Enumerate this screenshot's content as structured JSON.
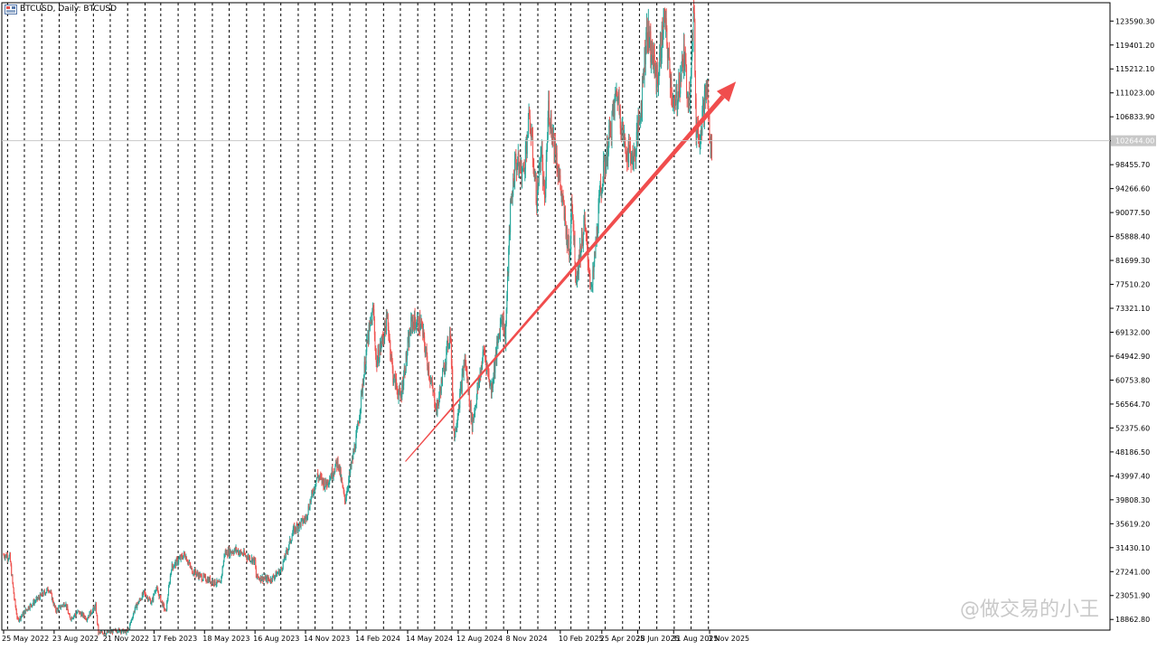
{
  "window": {
    "title": "BTCUSD, Daily: BTCUSD"
  },
  "watermark": "@做交易的小王",
  "chart_data": {
    "type": "candlestick",
    "symbol": "BTCUSD",
    "timeframe": "Daily",
    "title": "BTCUSD, Daily: BTCUSD",
    "current_price": 102644.0,
    "current_price_label": "102644.00",
    "x_start": "2022-05-25",
    "x_end": "2025-11-03",
    "x_ticks": [
      {
        "date": "2022-05-25",
        "label": "25 May 2022"
      },
      {
        "date": "2022-08-23",
        "label": "23 Aug 2022"
      },
      {
        "date": "2022-11-21",
        "label": "21 Nov 2022"
      },
      {
        "date": "2023-02-17",
        "label": "17 Feb 2023"
      },
      {
        "date": "2023-05-18",
        "label": "18 May 2023"
      },
      {
        "date": "2023-08-16",
        "label": "16 Aug 2023"
      },
      {
        "date": "2023-11-14",
        "label": "14 Nov 2023"
      },
      {
        "date": "2024-02-14",
        "label": "14 Feb 2024"
      },
      {
        "date": "2024-05-14",
        "label": "14 May 2024"
      },
      {
        "date": "2024-08-12",
        "label": "12 Aug 2024"
      },
      {
        "date": "2024-11-08",
        "label": "8 Nov 2024"
      },
      {
        "date": "2025-02-10",
        "label": "10 Feb 2025"
      },
      {
        "date": "2025-04-25",
        "label": "25 Apr 2025"
      },
      {
        "date": "2025-06-28",
        "label": "28 Jun 2025"
      },
      {
        "date": "2025-08-31",
        "label": "31 Aug 2025"
      },
      {
        "date": "2025-11-03",
        "label": "3 Nov 2025"
      }
    ],
    "y_ticks": [
      "123590.30",
      "119401.20",
      "115212.10",
      "111023.00",
      "106833.90",
      "102644.00",
      "98455.70",
      "94266.60",
      "90077.50",
      "85888.40",
      "81699.30",
      "77510.20",
      "73321.10",
      "69132.00",
      "64942.90",
      "60753.80",
      "56564.70",
      "52375.60",
      "48186.50",
      "43997.40",
      "39808.30",
      "35619.20",
      "31430.10",
      "27241.00",
      "23051.90",
      "18862.80"
    ],
    "ylim": [
      17000,
      126800
    ],
    "grid": "vertical dashed",
    "price_path": [
      [
        "2022-05-25",
        30200
      ],
      [
        "2022-06-05",
        29800
      ],
      [
        "2022-06-13",
        22500
      ],
      [
        "2022-06-19",
        18700
      ],
      [
        "2022-07-08",
        21000
      ],
      [
        "2022-07-25",
        22500
      ],
      [
        "2022-08-14",
        24300
      ],
      [
        "2022-08-26",
        20400
      ],
      [
        "2022-09-12",
        21800
      ],
      [
        "2022-09-20",
        19000
      ],
      [
        "2022-10-05",
        20200
      ],
      [
        "2022-10-20",
        19100
      ],
      [
        "2022-11-05",
        21200
      ],
      [
        "2022-11-10",
        16500
      ],
      [
        "2022-11-25",
        16500
      ],
      [
        "2022-12-15",
        17000
      ],
      [
        "2023-01-01",
        16600
      ],
      [
        "2023-01-14",
        20800
      ],
      [
        "2023-01-30",
        23500
      ],
      [
        "2023-02-13",
        21800
      ],
      [
        "2023-02-20",
        24500
      ],
      [
        "2023-03-10",
        20100
      ],
      [
        "2023-03-20",
        28000
      ],
      [
        "2023-04-13",
        30300
      ],
      [
        "2023-04-25",
        27500
      ],
      [
        "2023-05-12",
        26300
      ],
      [
        "2023-06-15",
        25000
      ],
      [
        "2023-06-23",
        30500
      ],
      [
        "2023-07-13",
        31000
      ],
      [
        "2023-08-16",
        29100
      ],
      [
        "2023-08-18",
        26300
      ],
      [
        "2023-09-12",
        25800
      ],
      [
        "2023-10-01",
        27500
      ],
      [
        "2023-10-24",
        34500
      ],
      [
        "2023-11-14",
        36500
      ],
      [
        "2023-12-05",
        44000
      ],
      [
        "2023-12-20",
        42500
      ],
      [
        "2024-01-11",
        46500
      ],
      [
        "2024-01-23",
        39500
      ],
      [
        "2024-02-14",
        51500
      ],
      [
        "2024-03-04",
        68000
      ],
      [
        "2024-03-14",
        73000
      ],
      [
        "2024-03-19",
        63500
      ],
      [
        "2024-04-08",
        71500
      ],
      [
        "2024-04-18",
        61500
      ],
      [
        "2024-05-01",
        57500
      ],
      [
        "2024-05-21",
        71000
      ],
      [
        "2024-06-07",
        70500
      ],
      [
        "2024-06-24",
        60500
      ],
      [
        "2024-07-05",
        55500
      ],
      [
        "2024-07-29",
        69500
      ],
      [
        "2024-08-05",
        50500
      ],
      [
        "2024-08-24",
        64500
      ],
      [
        "2024-09-06",
        53000
      ],
      [
        "2024-09-27",
        66000
      ],
      [
        "2024-10-10",
        59000
      ],
      [
        "2024-10-29",
        72500
      ],
      [
        "2024-11-04",
        68000
      ],
      [
        "2024-11-13",
        90500
      ],
      [
        "2024-11-22",
        99000
      ],
      [
        "2024-12-06",
        97000
      ],
      [
        "2024-12-17",
        107000
      ],
      [
        "2024-12-30",
        92500
      ],
      [
        "2025-01-07",
        101500
      ],
      [
        "2025-01-13",
        91000
      ],
      [
        "2025-01-20",
        108500
      ],
      [
        "2025-02-03",
        100000
      ],
      [
        "2025-02-27",
        82000
      ],
      [
        "2025-03-02",
        94000
      ],
      [
        "2025-03-10",
        78500
      ],
      [
        "2025-03-25",
        88000
      ],
      [
        "2025-04-07",
        76000
      ],
      [
        "2025-04-22",
        93500
      ],
      [
        "2025-05-08",
        103000
      ],
      [
        "2025-05-22",
        111500
      ],
      [
        "2025-06-05",
        101500
      ],
      [
        "2025-06-22",
        99500
      ],
      [
        "2025-07-04",
        109000
      ],
      [
        "2025-07-14",
        122500
      ],
      [
        "2025-08-02",
        113000
      ],
      [
        "2025-08-14",
        124200
      ],
      [
        "2025-09-01",
        107500
      ],
      [
        "2025-09-18",
        117500
      ],
      [
        "2025-09-27",
        109500
      ],
      [
        "2025-10-06",
        126000
      ],
      [
        "2025-10-10",
        105000
      ],
      [
        "2025-10-17",
        104000
      ],
      [
        "2025-10-29",
        112000
      ],
      [
        "2025-11-03",
        104000
      ],
      [
        "2025-11-05",
        100000
      ],
      [
        "2025-11-07",
        102000
      ]
    ],
    "annotation_arrow": {
      "from": [
        "2024-05-10",
        46500
      ],
      "to": [
        "2025-12-20",
        113000
      ],
      "color": "#f04d4d"
    }
  },
  "colors": {
    "bull_candle": "#26a69a",
    "bear_candle": "#ef5350",
    "grid": "#000000",
    "axis_text": "#000000",
    "price_line": "#c8c8c8",
    "price_label_bg": "#c8c8c8",
    "arrow": "#f04d4d"
  }
}
